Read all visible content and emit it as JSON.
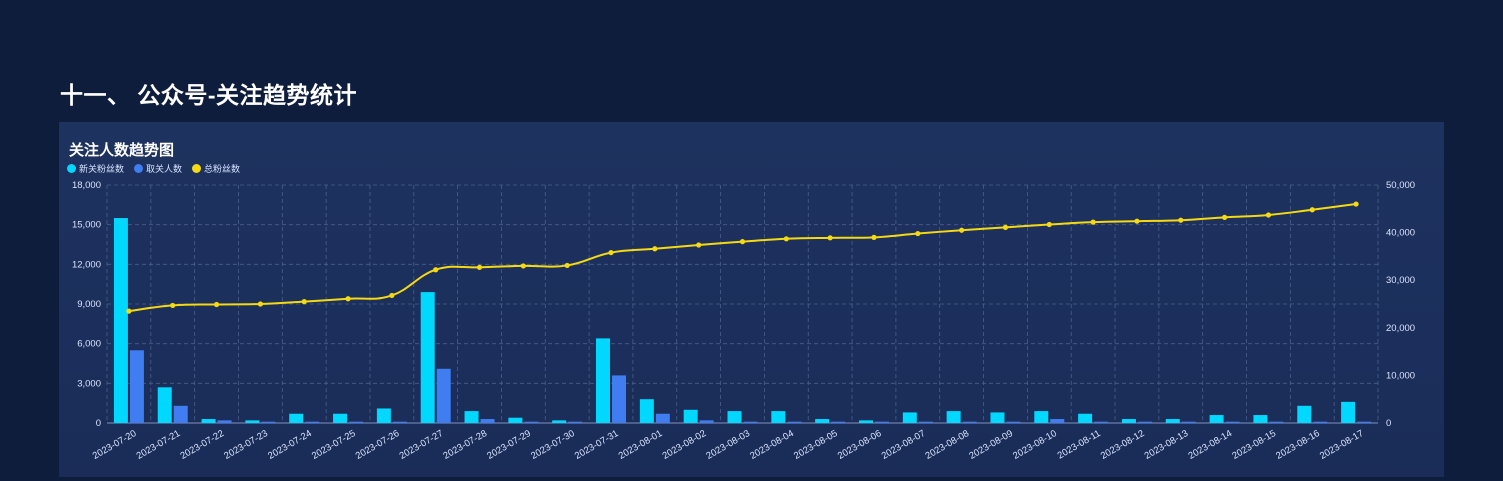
{
  "page": {
    "section_title": "十一、 公众号-关注趋势统计"
  },
  "chart_data": {
    "type": "bar",
    "title": "关注人数趋势图",
    "categories": [
      "2023-07-20",
      "2023-07-21",
      "2023-07-22",
      "2023-07-23",
      "2023-07-24",
      "2023-07-25",
      "2023-07-26",
      "2023-07-27",
      "2023-07-28",
      "2023-07-29",
      "2023-07-30",
      "2023-07-31",
      "2023-08-01",
      "2023-08-02",
      "2023-08-03",
      "2023-08-04",
      "2023-08-05",
      "2023-08-06",
      "2023-08-07",
      "2023-08-08",
      "2023-08-09",
      "2023-08-10",
      "2023-08-11",
      "2023-08-12",
      "2023-08-13",
      "2023-08-14",
      "2023-08-15",
      "2023-08-16",
      "2023-08-17"
    ],
    "series": [
      {
        "name": "新关粉丝数",
        "type": "bar",
        "axis": "left",
        "color": "#00d8ff",
        "values": [
          15500,
          2700,
          300,
          200,
          700,
          700,
          1100,
          9900,
          900,
          400,
          200,
          6400,
          1800,
          1000,
          900,
          900,
          300,
          200,
          800,
          900,
          800,
          900,
          700,
          300,
          300,
          600,
          600,
          1300,
          1600
        ]
      },
      {
        "name": "取关人数",
        "type": "bar",
        "axis": "left",
        "color": "#3f7df0",
        "values": [
          5500,
          1300,
          200,
          100,
          100,
          100,
          100,
          4100,
          300,
          100,
          100,
          3600,
          700,
          200,
          100,
          100,
          100,
          100,
          100,
          100,
          100,
          300,
          100,
          100,
          100,
          100,
          100,
          100,
          100
        ]
      },
      {
        "name": "总粉丝数",
        "type": "line",
        "axis": "right",
        "color": "#f5d912",
        "values": [
          23500,
          24700,
          24900,
          25000,
          25500,
          26100,
          26800,
          32200,
          32700,
          33000,
          33100,
          35800,
          36600,
          37400,
          38100,
          38700,
          38900,
          39000,
          39800,
          40500,
          41100,
          41700,
          42200,
          42400,
          42600,
          43200,
          43700,
          44800,
          46000
        ]
      }
    ],
    "left_axis": {
      "ylim": [
        0,
        18000
      ],
      "ticks": [
        "0",
        "3,000",
        "6,000",
        "9,000",
        "12,000",
        "15,000",
        "18,000"
      ]
    },
    "right_axis": {
      "ylim": [
        0,
        50000
      ],
      "ticks": [
        "0",
        "10,000",
        "20,000",
        "30,000",
        "40,000",
        "50,000"
      ]
    },
    "grid": true,
    "legend_position": "top-left"
  }
}
